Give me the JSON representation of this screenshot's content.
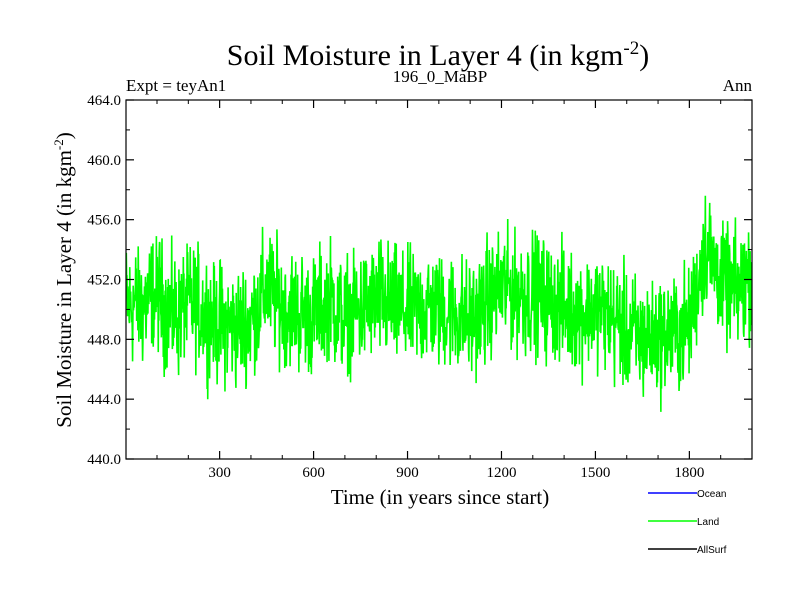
{
  "chart_data": {
    "type": "line",
    "title_main": "Soil Moisture in Layer 4 (in kgm",
    "title_sup": "-2",
    "title_close": ")",
    "subtitle_left": "Expt = teyAn1",
    "subtitle_center": "196_0_MaBP",
    "subtitle_right": "Ann",
    "xlabel": "Time (in years since start)",
    "ylabel_main": "Soil Moisture in Layer 4 (in kgm",
    "ylabel_sup": "-2",
    "ylabel_close": ")",
    "xlim": [
      1,
      2000
    ],
    "ylim": [
      440.0,
      464.0
    ],
    "xticks": [
      300,
      600,
      900,
      1200,
      1500,
      1800
    ],
    "xtick_labels": [
      "300",
      "600",
      "900",
      "1200",
      "1500",
      "1800"
    ],
    "yticks": [
      440,
      444,
      448,
      452,
      456,
      460,
      464
    ],
    "ytick_labels": [
      "440.0",
      "444.0",
      "448.0",
      "452.0",
      "456.0",
      "460.0",
      "464.0"
    ],
    "legend": [
      {
        "name": "Ocean",
        "color": "#0000ff"
      },
      {
        "name": "Land",
        "color": "#00ff00"
      },
      {
        "name": "AllSurf",
        "color": "#000000"
      }
    ],
    "series": [
      {
        "name": "Land",
        "color": "#00ff00",
        "x": [
          1,
          50,
          100,
          150,
          200,
          250,
          300,
          350,
          400,
          450,
          500,
          550,
          600,
          650,
          700,
          750,
          800,
          850,
          900,
          950,
          1000,
          1050,
          1100,
          1150,
          1200,
          1250,
          1300,
          1350,
          1400,
          1450,
          1500,
          1550,
          1600,
          1650,
          1700,
          1750,
          1800,
          1850,
          1900,
          1950,
          2000
        ],
        "values": [
          450.5,
          450.2,
          451.0,
          449.5,
          450.3,
          449.8,
          449.0,
          448.8,
          449.2,
          451.5,
          450.2,
          449.8,
          449.5,
          450.8,
          449.2,
          450.0,
          450.5,
          450.2,
          449.8,
          450.2,
          450.0,
          449.8,
          449.2,
          450.3,
          451.5,
          451.0,
          451.2,
          450.5,
          450.0,
          449.8,
          450.0,
          449.5,
          448.5,
          448.0,
          448.3,
          448.5,
          448.8,
          454.5,
          452.0,
          451.0,
          452.5
        ],
        "noise_amplitude": 1.9
      }
    ]
  }
}
